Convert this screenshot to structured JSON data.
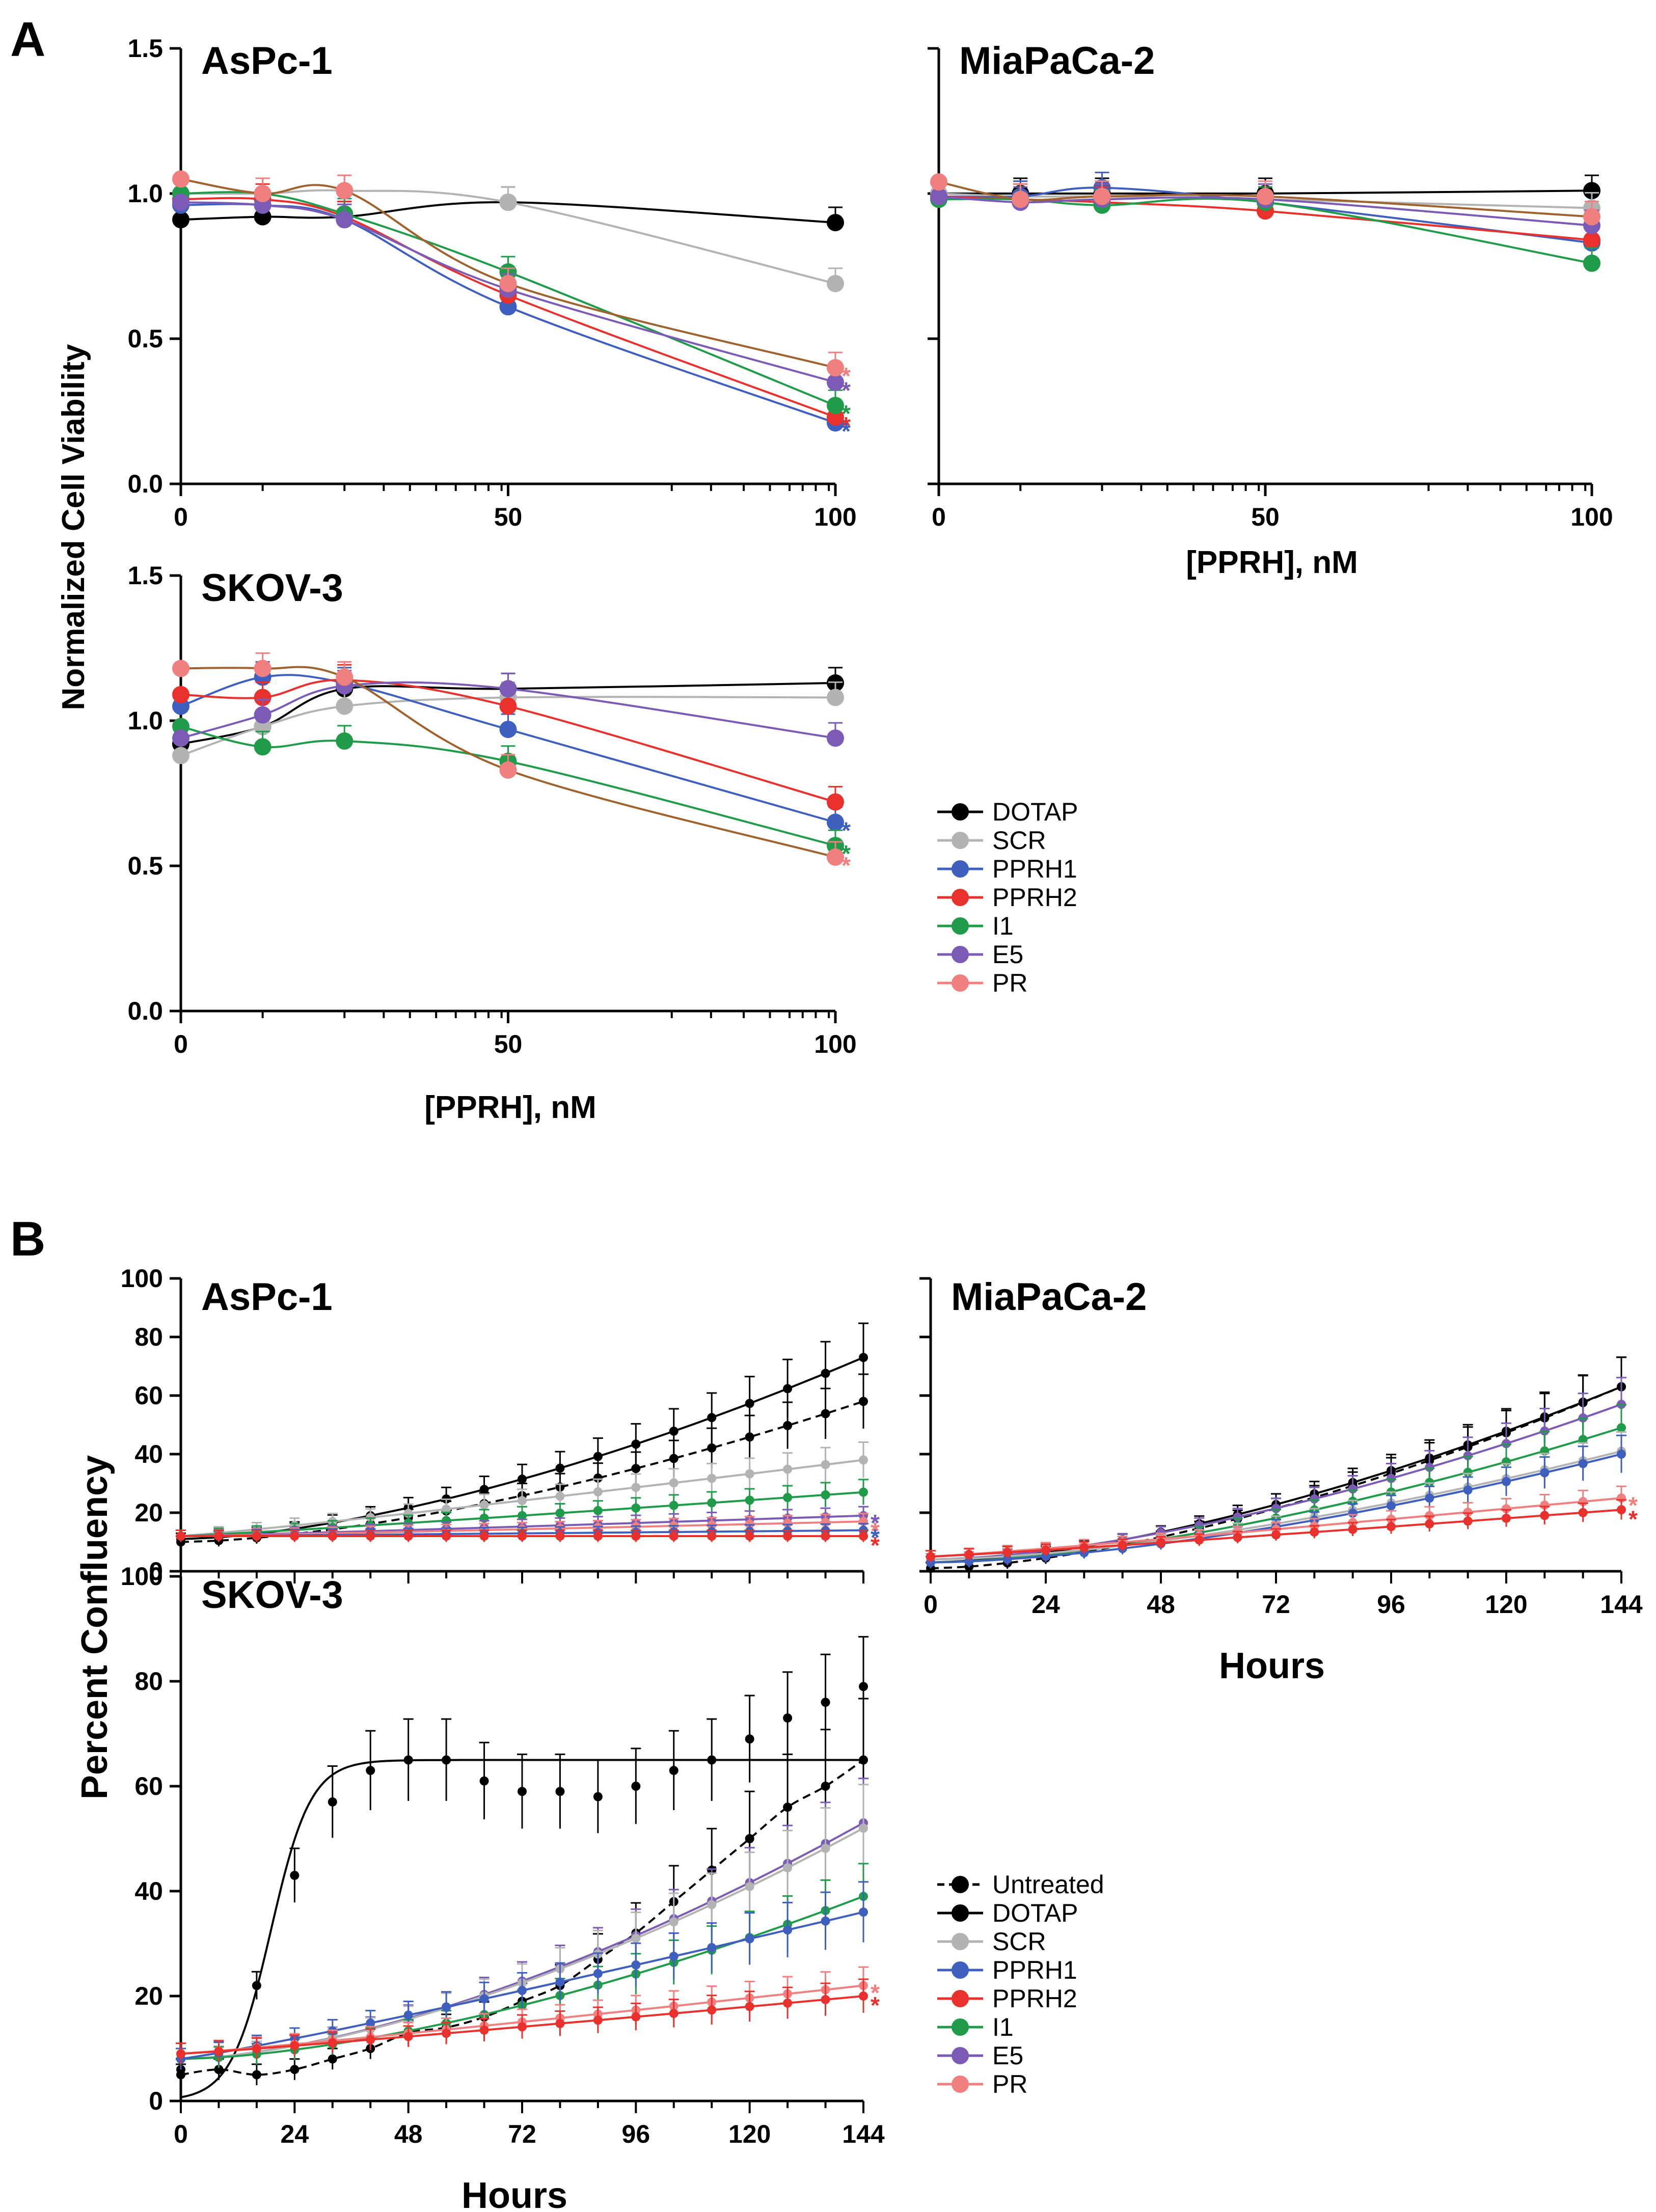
{
  "figure": {
    "panel_a_label": "A",
    "panel_b_label": "B",
    "a_ylabel": "Normalized Cell Viability",
    "a_xlabel": "[PPRH], nM",
    "b_ylabel": "Percent Confluency",
    "b_xlabel": "Hours"
  },
  "series_colors": {
    "Untreated": "#000000",
    "DOTAP": "#000000",
    "SCR": "#b3b3b3",
    "PPRH1": "#3f5fbf",
    "PPRH2": "#e8302c",
    "I1": "#1f9b4a",
    "E5": "#7b5bb5",
    "PR": "#f08080",
    "PR_fit": "#a0622d"
  },
  "legend_a": [
    "DOTAP",
    "SCR",
    "PPRH1",
    "PPRH2",
    "I1",
    "E5",
    "PR"
  ],
  "legend_b": [
    "Untreated",
    "DOTAP",
    "SCR",
    "PPRH1",
    "PPRH2",
    "I1",
    "E5",
    "PR"
  ],
  "chart_data": [
    {
      "type": "scatter",
      "id": "a-aspc1",
      "title": "AsPc-1",
      "xlabel": "[PPRH], nM",
      "ylabel": "Normalized Cell Viability",
      "x": [
        0,
        12.5,
        25,
        50,
        100
      ],
      "xticks": [
        "0",
        "50",
        "100"
      ],
      "ylim": [
        0,
        1.5
      ],
      "yticks": [
        "0.0",
        "0.5",
        "1.0",
        "1.5"
      ],
      "series": [
        {
          "name": "DOTAP",
          "values": [
            0.91,
            0.92,
            0.92,
            0.97,
            0.9
          ]
        },
        {
          "name": "SCR",
          "values": [
            1.0,
            1.0,
            1.01,
            0.97,
            0.69
          ]
        },
        {
          "name": "PPRH1",
          "values": [
            0.96,
            0.96,
            0.91,
            0.61,
            0.21
          ]
        },
        {
          "name": "PPRH2",
          "values": [
            0.98,
            0.98,
            0.92,
            0.65,
            0.23
          ]
        },
        {
          "name": "I1",
          "values": [
            1.0,
            1.0,
            0.93,
            0.73,
            0.27
          ]
        },
        {
          "name": "E5",
          "values": [
            0.97,
            0.96,
            0.91,
            0.67,
            0.35
          ]
        },
        {
          "name": "PR",
          "values": [
            1.05,
            1.0,
            1.01,
            0.69,
            0.4
          ]
        }
      ],
      "significance": [
        "PR",
        "E5",
        "I1",
        "PPRH2",
        "PPRH1"
      ],
      "star": "*"
    },
    {
      "type": "scatter",
      "id": "a-miapaca2",
      "title": "MiaPaCa-2",
      "xlabel": "[PPRH], nM",
      "x": [
        0,
        12.5,
        25,
        50,
        100
      ],
      "xticks": [
        "0",
        "50",
        "100"
      ],
      "ylim": [
        0,
        1.5
      ],
      "series": [
        {
          "name": "DOTAP",
          "values": [
            1.0,
            1.0,
            1.0,
            1.0,
            1.01
          ]
        },
        {
          "name": "SCR",
          "values": [
            1.0,
            0.99,
            0.99,
            0.98,
            0.95
          ]
        },
        {
          "name": "PPRH1",
          "values": [
            0.99,
            0.99,
            1.02,
            0.97,
            0.83
          ]
        },
        {
          "name": "PPRH2",
          "values": [
            0.99,
            0.98,
            0.97,
            0.94,
            0.84
          ]
        },
        {
          "name": "I1",
          "values": [
            0.98,
            0.98,
            0.96,
            0.97,
            0.76
          ]
        },
        {
          "name": "E5",
          "values": [
            0.99,
            0.97,
            0.98,
            0.98,
            0.89
          ]
        },
        {
          "name": "PR",
          "values": [
            1.04,
            0.98,
            0.99,
            0.99,
            0.92
          ]
        }
      ]
    },
    {
      "type": "scatter",
      "id": "a-skov3",
      "title": "SKOV-3",
      "xlabel": "[PPRH], nM",
      "x": [
        0,
        12.5,
        25,
        50,
        100
      ],
      "xticks": [
        "0",
        "50",
        "100"
      ],
      "ylim": [
        0,
        1.5
      ],
      "yticks": [
        "0.0",
        "0.5",
        "1.0",
        "1.5"
      ],
      "series": [
        {
          "name": "DOTAP",
          "values": [
            0.92,
            0.98,
            1.11,
            1.11,
            1.13
          ]
        },
        {
          "name": "SCR",
          "values": [
            0.88,
            0.98,
            1.05,
            1.08,
            1.08
          ]
        },
        {
          "name": "PPRH1",
          "values": [
            1.05,
            1.15,
            1.13,
            0.97,
            0.65
          ]
        },
        {
          "name": "PPRH2",
          "values": [
            1.09,
            1.08,
            1.14,
            1.05,
            0.72
          ]
        },
        {
          "name": "I1",
          "values": [
            0.98,
            0.91,
            0.93,
            0.86,
            0.57
          ]
        },
        {
          "name": "E5",
          "values": [
            0.94,
            1.02,
            1.12,
            1.11,
            0.94
          ]
        },
        {
          "name": "PR",
          "values": [
            1.18,
            1.18,
            1.15,
            0.83,
            0.53
          ]
        }
      ],
      "significance": [
        "PPRH1",
        "I1",
        "PR"
      ],
      "star": "*"
    },
    {
      "type": "line",
      "id": "b-aspc1",
      "title": "AsPc-1",
      "ylabel": "Percent Confluency",
      "xlim": [
        0,
        144
      ],
      "ylim": [
        0,
        100
      ],
      "yticks": [
        "0",
        "20",
        "40",
        "60",
        "80",
        "100"
      ],
      "endpoints": [
        {
          "name": "Untreated",
          "start": 10,
          "end": 58
        },
        {
          "name": "DOTAP",
          "start": 11,
          "end": 73
        },
        {
          "name": "SCR",
          "start": 12,
          "end": 38
        },
        {
          "name": "I1",
          "start": 12,
          "end": 27
        },
        {
          "name": "E5",
          "start": 12,
          "end": 19
        },
        {
          "name": "PR",
          "start": 12,
          "end": 17
        },
        {
          "name": "PPRH1",
          "start": 12,
          "end": 14
        },
        {
          "name": "PPRH2",
          "start": 12,
          "end": 12
        }
      ],
      "significance": [
        "E5",
        "PR",
        "PPRH1",
        "PPRH2"
      ],
      "star": "*"
    },
    {
      "type": "line",
      "id": "b-miapaca2",
      "title": "MiaPaCa-2",
      "xlabel": "Hours",
      "xlim": [
        0,
        144
      ],
      "xticks": [
        "0",
        "24",
        "48",
        "72",
        "96",
        "120",
        "144"
      ],
      "ylim": [
        0,
        100
      ],
      "endpoints": [
        {
          "name": "Untreated",
          "start": 1,
          "end": 63
        },
        {
          "name": "DOTAP",
          "start": 3,
          "end": 63
        },
        {
          "name": "E5",
          "start": 4,
          "end": 57
        },
        {
          "name": "I1",
          "start": 3,
          "end": 49
        },
        {
          "name": "SCR",
          "start": 4,
          "end": 41
        },
        {
          "name": "PPRH1",
          "start": 3,
          "end": 40
        },
        {
          "name": "PR",
          "start": 5,
          "end": 25
        },
        {
          "name": "PPRH2",
          "start": 5,
          "end": 21
        }
      ],
      "significance": [
        "PR",
        "PPRH2"
      ],
      "star": "*"
    },
    {
      "type": "line",
      "id": "b-skov3",
      "title": "SKOV-3",
      "xlabel": "Hours",
      "xlim": [
        0,
        144
      ],
      "xticks": [
        "0",
        "24",
        "48",
        "72",
        "96",
        "120",
        "144"
      ],
      "ylim": [
        0,
        100
      ],
      "yticks": [
        "0",
        "20",
        "40",
        "60",
        "80",
        "100"
      ],
      "untreated_points": [
        [
          0,
          5
        ],
        [
          8,
          6
        ],
        [
          16,
          5
        ],
        [
          24,
          6
        ],
        [
          32,
          8
        ],
        [
          40,
          10
        ],
        [
          48,
          13
        ],
        [
          56,
          14
        ],
        [
          64,
          16
        ],
        [
          72,
          19
        ],
        [
          80,
          22
        ],
        [
          88,
          27
        ],
        [
          96,
          32
        ],
        [
          104,
          38
        ],
        [
          112,
          44
        ],
        [
          120,
          50
        ],
        [
          128,
          56
        ],
        [
          136,
          60
        ],
        [
          144,
          65
        ]
      ],
      "dotap_points": [
        [
          0,
          6
        ],
        [
          8,
          6
        ],
        [
          16,
          22
        ],
        [
          24,
          43
        ],
        [
          32,
          57
        ],
        [
          40,
          63
        ],
        [
          48,
          65
        ],
        [
          56,
          65
        ],
        [
          64,
          61
        ],
        [
          72,
          59
        ],
        [
          80,
          59
        ],
        [
          88,
          58
        ],
        [
          96,
          60
        ],
        [
          104,
          63
        ],
        [
          112,
          65
        ],
        [
          120,
          69
        ],
        [
          128,
          73
        ],
        [
          136,
          76
        ],
        [
          144,
          79
        ]
      ],
      "endpoints": [
        {
          "name": "E5",
          "start": 8,
          "end": 53
        },
        {
          "name": "SCR",
          "start": 8,
          "end": 52
        },
        {
          "name": "I1",
          "start": 8,
          "end": 39
        },
        {
          "name": "PPRH1",
          "start": 8,
          "end": 36
        },
        {
          "name": "PR",
          "start": 9,
          "end": 22
        },
        {
          "name": "PPRH2",
          "start": 9,
          "end": 20
        }
      ],
      "significance": [
        "PR",
        "PPRH2"
      ],
      "star": "*"
    }
  ]
}
